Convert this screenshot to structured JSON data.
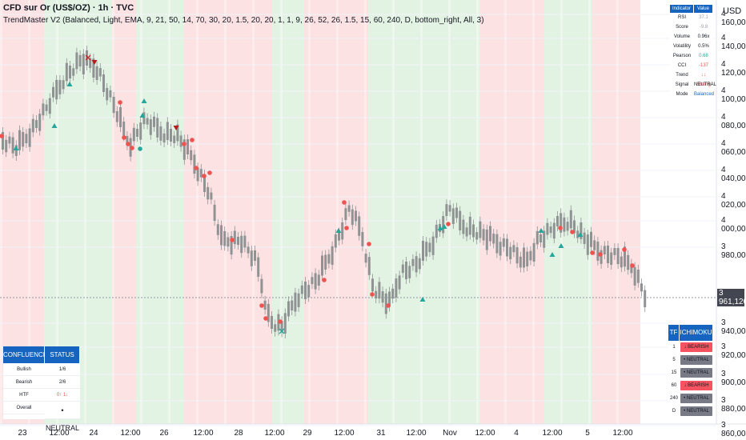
{
  "header": {
    "title": "CFD sur Or (US$/OZ) · 1h · TVC",
    "indicator_line": "TrendMaster V2 (Balanced, Light, EMA, 9, 21, 50, 14, 70, 30, 20, 1.5, 20, 20, 1, 1, 9, 26, 52, 26, 1.5, 15, 60, 240, D, bottom_right, All, 3)"
  },
  "price_axis": {
    "currency": "USD",
    "ticks": [
      "4 160,000",
      "4 140,000",
      "4 120,000",
      "4 100,000",
      "4 080,000",
      "4 060,000",
      "4 040,000",
      "4 020,000",
      "4 000,000",
      "3 980,000",
      "3 940,000",
      "3 920,000",
      "3 900,000",
      "3 880,000",
      "3 860,000"
    ],
    "last_price": "3 961,120",
    "countdown": "09:45"
  },
  "time_axis": {
    "ticks": [
      "23",
      "12:00",
      "24",
      "12:00",
      "26",
      "12:00",
      "28",
      "12:00",
      "29",
      "12:00",
      "31",
      "12:00",
      "Nov",
      "12:00",
      "4",
      "12:00",
      "5",
      "12:00"
    ]
  },
  "indicator_table": {
    "headers": [
      "Indicator",
      "Value"
    ],
    "rows": [
      {
        "name": "RSI",
        "value": "37.1",
        "color": "#9aa0ad"
      },
      {
        "name": "Score",
        "value": "-9.8",
        "color": "#9aa0ad"
      },
      {
        "name": "Volume",
        "value": "0.96x",
        "color": "#131722"
      },
      {
        "name": "Volatility",
        "value": "0.5%",
        "color": "#131722"
      },
      {
        "name": "Pearson",
        "value": "0.68",
        "color": "#26a69a"
      },
      {
        "name": "CCI",
        "value": "-137",
        "color": "#ef5350"
      },
      {
        "name": "Trend",
        "value": "↓↓ Strong",
        "color": "#ef5350"
      },
      {
        "name": "Signal",
        "value": "NEUTRAL",
        "color": "#131722"
      },
      {
        "name": "Mode",
        "value": "Balanced",
        "color": "#1565c0"
      }
    ]
  },
  "confluence_table": {
    "headers": [
      "CONFLUENCE",
      "STATUS"
    ],
    "rows": [
      {
        "name": "Bullish",
        "value": "1/6",
        "color": "#131722"
      },
      {
        "name": "Bearish",
        "value": "2/6",
        "color": "#131722"
      },
      {
        "name": "HTF",
        "value": "0↑ 1↓",
        "color": "#ef5350"
      },
      {
        "name": "Overall",
        "value": "• NEUTRAL",
        "color": "#131722"
      }
    ]
  },
  "tf_table": {
    "headers": [
      "TF",
      "ICHIMOKU"
    ],
    "rows": [
      {
        "tf": "1",
        "status": "↓ BEARISH",
        "color": "#f7525f"
      },
      {
        "tf": "5",
        "status": "• NEUTRAL",
        "color": "#787b86"
      },
      {
        "tf": "15",
        "status": "• NEUTRAL",
        "color": "#787b86"
      },
      {
        "tf": "60",
        "status": "↓ BEARISH",
        "color": "#f7525f"
      },
      {
        "tf": "240",
        "status": "• NEUTRAL",
        "color": "#787b86"
      },
      {
        "tf": "D",
        "status": "• NEUTRAL",
        "color": "#787b86"
      }
    ]
  },
  "colors": {
    "bull_band": "#e3f3e3",
    "bear_band": "#fde2e4",
    "candle": "#8f9393",
    "buy_signal": "#26a69a",
    "sell_signal": "#ef5350",
    "header_blue": "#1565c0"
  }
}
